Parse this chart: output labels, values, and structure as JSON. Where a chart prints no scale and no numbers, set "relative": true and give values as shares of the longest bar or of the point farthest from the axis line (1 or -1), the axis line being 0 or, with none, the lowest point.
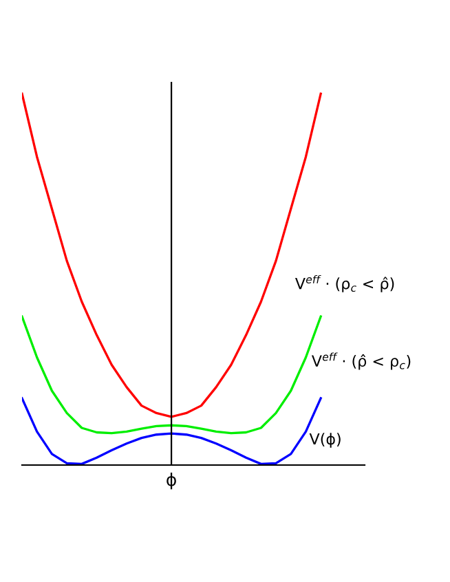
{
  "chart_data": {
    "type": "line",
    "relative": true,
    "xlabel": "ϕ",
    "categories": [
      null,
      null,
      null,
      null,
      null,
      null,
      null,
      null,
      null,
      null,
      null,
      null,
      null,
      null,
      null,
      null,
      null,
      null,
      null,
      null,
      null
    ],
    "series": [
      {
        "name": "V$^{eff}$ · (ρ$_{c}$ < ρ̂)",
        "color": "#ff0000",
        "values": [
          1.0,
          0.83,
          0.69,
          0.55,
          0.44,
          0.35,
          0.27,
          0.21,
          0.16,
          0.14,
          0.13,
          0.14,
          0.16,
          0.21,
          0.27,
          0.35,
          0.44,
          0.55,
          0.69,
          0.83,
          1.0
        ]
      },
      {
        "name": "V$^{eff}$ · (ρ̂ < ρ$_{c}$)",
        "color": "#00ee00",
        "values": [
          0.4,
          0.29,
          0.2,
          0.14,
          0.1,
          0.088,
          0.086,
          0.09,
          0.098,
          0.105,
          0.107,
          0.105,
          0.098,
          0.09,
          0.086,
          0.088,
          0.1,
          0.14,
          0.2,
          0.29,
          0.4
        ]
      },
      {
        "name": "V(ϕ)",
        "color": "#0000ff",
        "values": [
          0.18,
          0.09,
          0.03,
          0.005,
          0.003,
          0.02,
          0.04,
          0.058,
          0.073,
          0.082,
          0.085,
          0.082,
          0.073,
          0.058,
          0.04,
          0.02,
          0.003,
          0.005,
          0.03,
          0.09,
          0.18
        ]
      }
    ],
    "legend": false,
    "marker": "none",
    "line_style": "solid"
  }
}
